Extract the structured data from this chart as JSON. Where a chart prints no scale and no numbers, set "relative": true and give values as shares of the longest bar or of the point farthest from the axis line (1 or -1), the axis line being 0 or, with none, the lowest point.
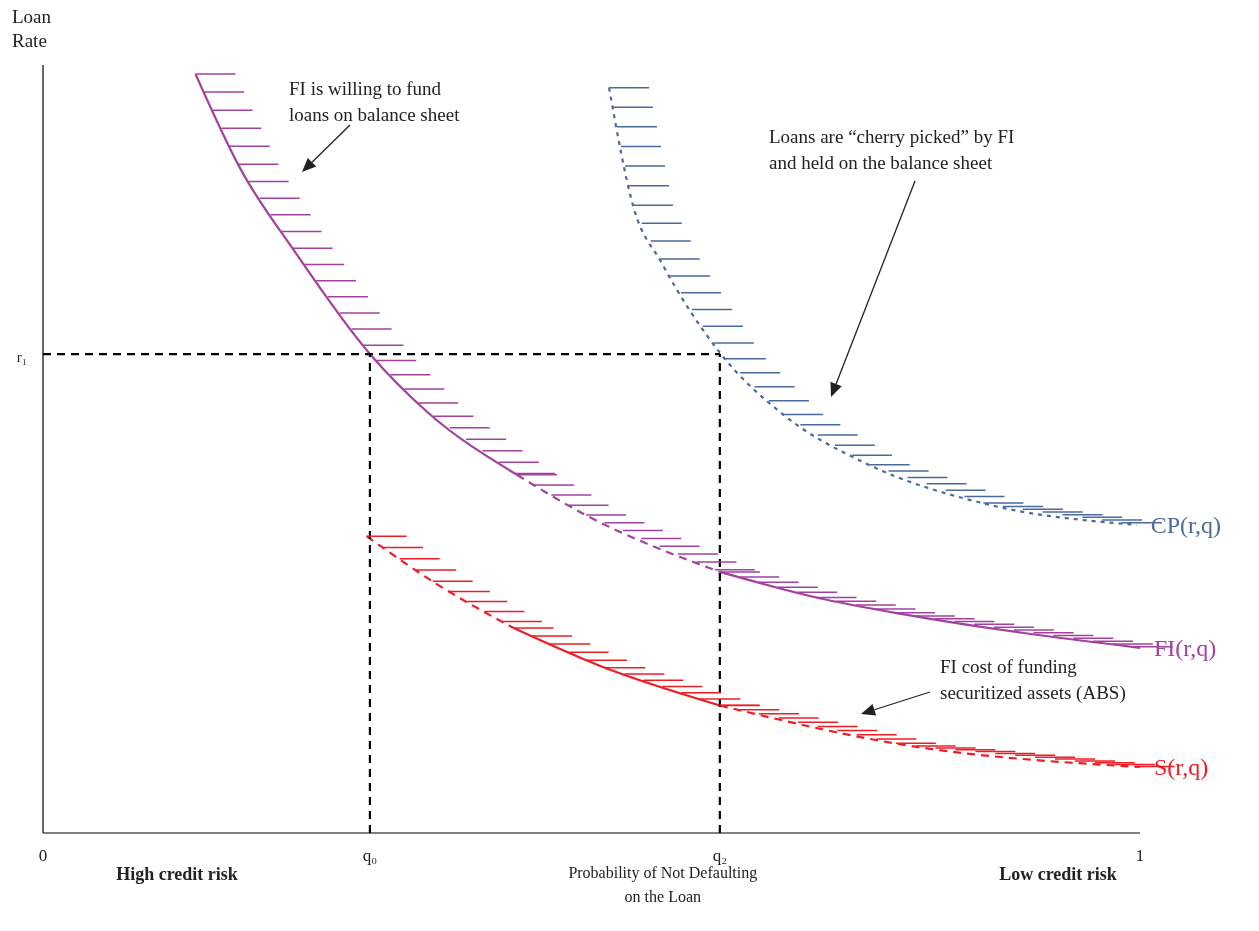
{
  "chart_data": {
    "type": "line",
    "relative": true,
    "xlabel": "Probability of Not Defaulting on the Loan",
    "ylabel": "Loan Rate",
    "xlim": [
      0,
      1
    ],
    "xticks": [
      0,
      {
        "value": 0.298,
        "label": "q₀"
      },
      {
        "value": 0.617,
        "label": "q₂"
      },
      1
    ],
    "legend": "right",
    "series": [
      {
        "color": "#a3419e",
        "line_style": "solid",
        "x": [
          0.139,
          0.18,
          0.23,
          0.298,
          0.35,
          0.432
        ],
        "values": [
          1.0,
          0.875,
          0.765,
          0.631,
          0.555,
          0.472
        ]
      },
      {
        "color": "#a3419e",
        "line_style": "dashed",
        "x": [
          0.432,
          0.492,
          0.617
        ],
        "values": [
          0.472,
          0.421,
          0.344
        ]
      },
      {
        "name": "FI(r,q)",
        "color": "#a3419e",
        "line_style": "solid",
        "x": [
          0.617,
          0.706,
          0.785,
          1.0
        ],
        "values": [
          0.344,
          0.31,
          0.288,
          0.244
        ]
      },
      {
        "name": "CP(r,q)",
        "color": "#4a6a9c",
        "line_style": "dotted",
        "x": [
          0.516,
          0.538,
          0.564,
          0.618,
          0.675,
          0.75,
          0.861,
          0.997
        ],
        "values": [
          0.982,
          0.826,
          0.751,
          0.631,
          0.551,
          0.487,
          0.433,
          0.406
        ]
      },
      {
        "color": "#ee1c25",
        "line_style": "dashed",
        "x": [
          0.295,
          0.36,
          0.429
        ],
        "values": [
          0.391,
          0.327,
          0.27
        ]
      },
      {
        "color": "#ee1c25",
        "line_style": "solid",
        "x": [
          0.429,
          0.508,
          0.617
        ],
        "values": [
          0.27,
          0.22,
          0.168
        ]
      },
      {
        "name": "S(r,q)",
        "color": "#ee1c25",
        "line_style": "dashed",
        "x": [
          0.617,
          0.785,
          1.0
        ],
        "values": [
          0.168,
          0.116,
          0.087
        ]
      },
      {
        "color": "#000000",
        "line_style": "dashed",
        "x": [
          0,
          0.617
        ],
        "values": [
          0.631,
          0.631
        ]
      },
      {
        "color": "#000000",
        "line_style": "dashed",
        "x": [
          0.298,
          0.298
        ],
        "values": [
          0,
          0.631
        ]
      },
      {
        "color": "#000000",
        "line_style": "dashed",
        "x": [
          0.617,
          0.617
        ],
        "values": [
          0,
          0.631
        ]
      }
    ],
    "annotations": [
      {
        "text": "r₁",
        "x": 0,
        "y": 0.631
      },
      "FI is willing to fund loans on balance sheet",
      "Loans are “cherry picked” by FI and held on the balance sheet",
      "FI cost of funding securitized assets (ABS)",
      "High credit risk",
      "Low credit risk"
    ]
  }
}
